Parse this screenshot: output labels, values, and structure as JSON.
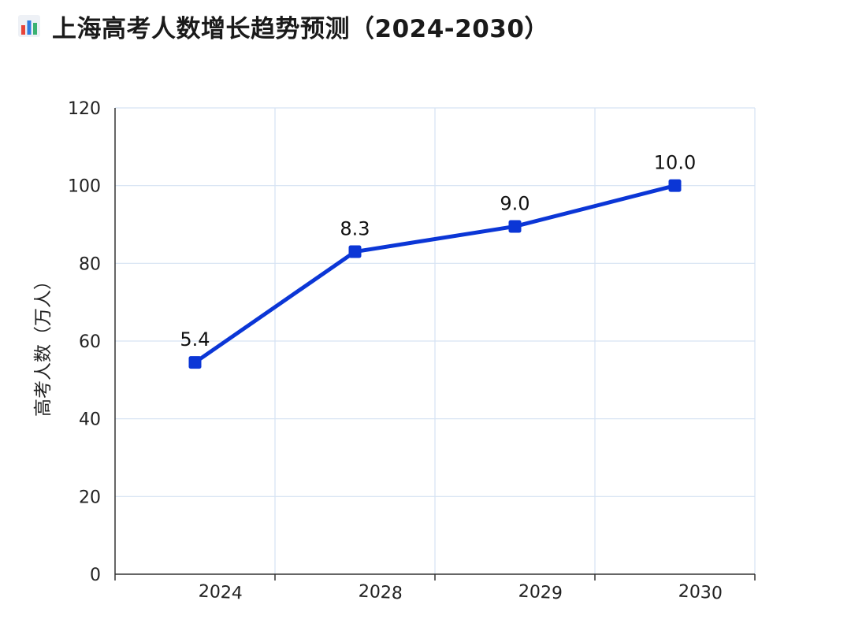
{
  "header": {
    "title": "上海高考人数增长趋势预测（2024-2030）",
    "icon": "bar-chart-icon"
  },
  "chart_data": {
    "type": "line",
    "title": "上海高考人数增长趋势预测（2024-2030）",
    "xlabel": "",
    "ylabel": "高考人数（万人）",
    "categories": [
      "2024",
      "2028",
      "2029",
      "2030"
    ],
    "series": [
      {
        "values": [
          54.5,
          83,
          89.5,
          100
        ],
        "data_labels": [
          "5.4",
          "8.3",
          "9.0",
          "10.0"
        ],
        "color": "#0b36d6"
      }
    ],
    "ylim": [
      0,
      120
    ],
    "yticks": [
      0,
      20,
      40,
      60,
      80,
      100,
      120
    ],
    "grid": true,
    "grid_color": "#d6e3f3",
    "axis_color": "#333333"
  }
}
